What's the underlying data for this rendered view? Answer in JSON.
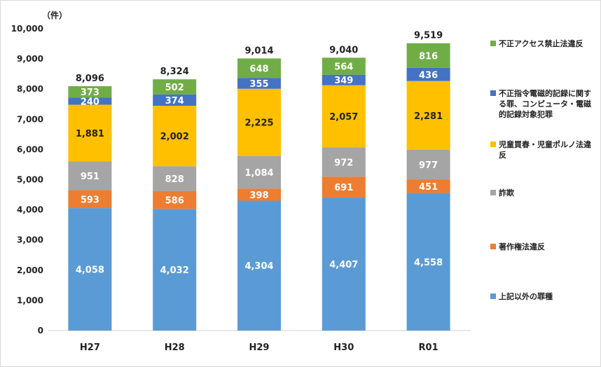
{
  "chart_data": {
    "type": "bar",
    "stacked": true,
    "unit_label": "（件）",
    "categories": [
      "H27",
      "H28",
      "H29",
      "H30",
      "R01"
    ],
    "totals": [
      8096,
      8324,
      9014,
      9040,
      9519
    ],
    "ylim": [
      0,
      10000
    ],
    "yticks": [
      0,
      1000,
      2000,
      3000,
      4000,
      5000,
      6000,
      7000,
      8000,
      9000,
      10000
    ],
    "ytick_labels": [
      "0",
      "1,000",
      "2,000",
      "3,000",
      "4,000",
      "5,000",
      "6,000",
      "7,000",
      "8,000",
      "9,000",
      "10,000"
    ],
    "series": [
      {
        "name": "上記以外の罪種",
        "color": "#5b9bd5",
        "values": [
          4058,
          4032,
          4304,
          4407,
          4558
        ]
      },
      {
        "name": "著作権法違反",
        "color": "#ed7d31",
        "values": [
          593,
          586,
          398,
          691,
          451
        ]
      },
      {
        "name": "詐欺",
        "color": "#a5a5a5",
        "values": [
          951,
          828,
          1084,
          972,
          977
        ]
      },
      {
        "name": "児童買春・児童ポルノ法違反",
        "color": "#ffc000",
        "values": [
          1881,
          2002,
          2225,
          2057,
          2281
        ]
      },
      {
        "name": "不正指令電磁的記録に関する罪、コンピュータ・電磁的記録対象犯罪",
        "color": "#4472c4",
        "values": [
          240,
          374,
          355,
          349,
          436
        ]
      },
      {
        "name": "不正アクセス禁止法違反",
        "color": "#70ad47",
        "values": [
          373,
          502,
          648,
          564,
          816
        ]
      }
    ],
    "legend_position": "right",
    "grid": false
  }
}
